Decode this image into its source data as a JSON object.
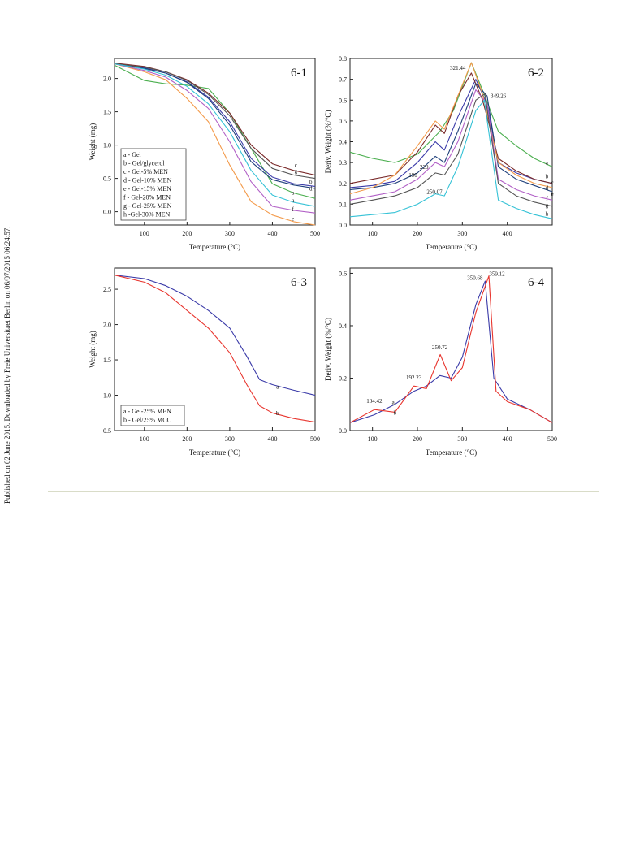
{
  "side_note": "Published on 02 June 2015. Downloaded by Freie Universitaet Berlin on 06/07/2015 06:24:57.",
  "chart_data": [
    {
      "id": "6-1",
      "type": "line",
      "panel_label": "6-1",
      "xlabel": "Temperature (°C)",
      "ylabel": "Weight (mg)",
      "xlim": [
        30,
        500
      ],
      "ylim": [
        -0.2,
        2.3
      ],
      "xticks": [
        100,
        200,
        300,
        400,
        500
      ],
      "yticks": [
        0.0,
        0.5,
        1.0,
        1.5,
        2.0
      ],
      "legend": {
        "placement": "bottom-left",
        "entries": [
          "a - Gel",
          "b - Gel/glycerol",
          "c - Gel-5% MEN",
          "d - Gel-10% MEN",
          "e - Gel-15% MEN",
          "f - Gel-20% MEN",
          "g - Gel-25% MEN",
          "h -Gel-30% MEN"
        ]
      },
      "series": [
        {
          "name": "a",
          "color": "#4caf50",
          "x": [
            30,
            100,
            150,
            200,
            250,
            300,
            350,
            400,
            450,
            500
          ],
          "y": [
            2.2,
            1.97,
            1.92,
            1.9,
            1.85,
            1.48,
            0.95,
            0.42,
            0.28,
            0.2
          ]
        },
        {
          "name": "b",
          "color": "#3a3aa8",
          "x": [
            30,
            100,
            150,
            200,
            250,
            300,
            350,
            400,
            450,
            500
          ],
          "y": [
            2.22,
            2.16,
            2.08,
            1.95,
            1.72,
            1.35,
            0.8,
            0.52,
            0.42,
            0.38
          ]
        },
        {
          "name": "c",
          "color": "#7a2a2a",
          "x": [
            30,
            100,
            150,
            200,
            250,
            300,
            350,
            400,
            450,
            500
          ],
          "y": [
            2.23,
            2.18,
            2.1,
            1.98,
            1.78,
            1.48,
            1.0,
            0.72,
            0.62,
            0.55
          ]
        },
        {
          "name": "d",
          "color": "#1e3f7a",
          "x": [
            30,
            100,
            150,
            200,
            250,
            300,
            350,
            400,
            450,
            500
          ],
          "y": [
            2.22,
            2.15,
            2.08,
            1.94,
            1.7,
            1.3,
            0.75,
            0.48,
            0.4,
            0.35
          ]
        },
        {
          "name": "e",
          "color": "#f39a4a",
          "x": [
            30,
            100,
            150,
            200,
            250,
            300,
            350,
            400,
            450,
            500
          ],
          "y": [
            2.22,
            2.1,
            1.98,
            1.7,
            1.35,
            0.7,
            0.15,
            -0.05,
            -0.15,
            -0.2
          ]
        },
        {
          "name": "f",
          "color": "#b15fc6",
          "x": [
            30,
            100,
            150,
            200,
            250,
            300,
            350,
            400,
            450,
            500
          ],
          "y": [
            2.22,
            2.12,
            2.02,
            1.82,
            1.55,
            1.05,
            0.45,
            0.08,
            0.02,
            -0.02
          ]
        },
        {
          "name": "g",
          "color": "#555555",
          "x": [
            30,
            100,
            150,
            200,
            250,
            300,
            350,
            400,
            450,
            500
          ],
          "y": [
            2.22,
            2.17,
            2.1,
            1.97,
            1.76,
            1.44,
            0.95,
            0.65,
            0.55,
            0.5
          ]
        },
        {
          "name": "h",
          "color": "#35c2d6",
          "x": [
            30,
            100,
            150,
            200,
            250,
            300,
            350,
            400,
            450,
            500
          ],
          "y": [
            2.22,
            2.14,
            2.05,
            1.88,
            1.62,
            1.2,
            0.62,
            0.25,
            0.14,
            0.08
          ]
        }
      ],
      "annotations": [
        {
          "text": "c",
          "x": 455,
          "y": 0.67
        },
        {
          "text": "g",
          "x": 455,
          "y": 0.58
        },
        {
          "text": "b",
          "x": 490,
          "y": 0.42
        },
        {
          "text": "d",
          "x": 490,
          "y": 0.32
        },
        {
          "text": "a",
          "x": 448,
          "y": 0.26
        },
        {
          "text": "h",
          "x": 448,
          "y": 0.14
        },
        {
          "text": "f",
          "x": 448,
          "y": 0.01
        },
        {
          "text": "e",
          "x": 448,
          "y": -0.13
        }
      ]
    },
    {
      "id": "6-2",
      "type": "line",
      "panel_label": "6-2",
      "xlabel": "Temperature (°C)",
      "ylabel": "Deriv. Weight (%/°C)",
      "xlim": [
        50,
        500
      ],
      "ylim": [
        0.0,
        0.8
      ],
      "xticks": [
        100,
        200,
        300,
        400
      ],
      "yticks": [
        0.0,
        0.1,
        0.2,
        0.3,
        0.4,
        0.5,
        0.6,
        0.7,
        0.8
      ],
      "series": [
        {
          "name": "a",
          "color": "#4caf50",
          "x": [
            50,
            100,
            150,
            200,
            250,
            280,
            320,
            350,
            380,
            420,
            460,
            500
          ],
          "y": [
            0.35,
            0.32,
            0.3,
            0.34,
            0.45,
            0.55,
            0.78,
            0.62,
            0.45,
            0.38,
            0.32,
            0.28
          ]
        },
        {
          "name": "b",
          "color": "#3a3aa8",
          "x": [
            50,
            100,
            150,
            200,
            240,
            260,
            290,
            330,
            355,
            380,
            420,
            460,
            500
          ],
          "y": [
            0.18,
            0.19,
            0.21,
            0.3,
            0.4,
            0.36,
            0.52,
            0.7,
            0.58,
            0.3,
            0.25,
            0.22,
            0.2
          ]
        },
        {
          "name": "c",
          "color": "#7a2a2a",
          "x": [
            50,
            100,
            150,
            200,
            240,
            260,
            290,
            320,
            345,
            380,
            420,
            460,
            500
          ],
          "y": [
            0.2,
            0.22,
            0.24,
            0.35,
            0.48,
            0.44,
            0.62,
            0.73,
            0.6,
            0.32,
            0.26,
            0.22,
            0.2
          ]
        },
        {
          "name": "d",
          "color": "#1e3f7a",
          "x": [
            50,
            100,
            150,
            200,
            240,
            260,
            290,
            330,
            355,
            380,
            420,
            460,
            500
          ],
          "y": [
            0.17,
            0.18,
            0.2,
            0.25,
            0.33,
            0.3,
            0.45,
            0.68,
            0.62,
            0.28,
            0.22,
            0.19,
            0.16
          ]
        },
        {
          "name": "e",
          "color": "#f39a4a",
          "x": [
            50,
            100,
            150,
            200,
            240,
            260,
            290,
            320,
            345,
            380,
            420,
            460,
            500
          ],
          "y": [
            0.15,
            0.18,
            0.24,
            0.38,
            0.5,
            0.46,
            0.62,
            0.78,
            0.63,
            0.3,
            0.24,
            0.2,
            0.18
          ]
        },
        {
          "name": "f",
          "color": "#b15fc6",
          "x": [
            50,
            100,
            150,
            200,
            240,
            260,
            290,
            330,
            355,
            380,
            420,
            460,
            500
          ],
          "y": [
            0.12,
            0.14,
            0.16,
            0.22,
            0.3,
            0.28,
            0.4,
            0.65,
            0.58,
            0.22,
            0.17,
            0.14,
            0.12
          ]
        },
        {
          "name": "g",
          "color": "#555555",
          "x": [
            50,
            100,
            150,
            200,
            240,
            260,
            290,
            330,
            350,
            380,
            420,
            460,
            500
          ],
          "y": [
            0.1,
            0.12,
            0.14,
            0.18,
            0.25,
            0.24,
            0.34,
            0.6,
            0.63,
            0.2,
            0.14,
            0.11,
            0.09
          ]
        },
        {
          "name": "h",
          "color": "#35c2d6",
          "x": [
            50,
            100,
            150,
            200,
            240,
            260,
            290,
            330,
            349,
            380,
            420,
            460,
            500
          ],
          "y": [
            0.04,
            0.05,
            0.06,
            0.1,
            0.15,
            0.14,
            0.28,
            0.55,
            0.6,
            0.12,
            0.08,
            0.05,
            0.03
          ]
        }
      ],
      "annotations": [
        {
          "text": "321.44",
          "x": 290,
          "y": 0.745
        },
        {
          "text": "349.26",
          "x": 380,
          "y": 0.61
        },
        {
          "text": "220",
          "x": 215,
          "y": 0.27
        },
        {
          "text": "190",
          "x": 190,
          "y": 0.23
        },
        {
          "text": "250.07",
          "x": 238,
          "y": 0.15
        },
        {
          "text": "a",
          "x": 488,
          "y": 0.29
        },
        {
          "text": "b",
          "x": 488,
          "y": 0.225
        },
        {
          "text": "c",
          "x": 500,
          "y": 0.195
        },
        {
          "text": "d",
          "x": 488,
          "y": 0.17
        },
        {
          "text": "e",
          "x": 500,
          "y": 0.14
        },
        {
          "text": "f",
          "x": 488,
          "y": 0.12
        },
        {
          "text": "g",
          "x": 488,
          "y": 0.085
        },
        {
          "text": "h",
          "x": 488,
          "y": 0.045
        }
      ]
    },
    {
      "id": "6-3",
      "type": "line",
      "panel_label": "6-3",
      "xlabel": "Temperature (°C)",
      "ylabel": "Weight (mg)",
      "xlim": [
        30,
        500
      ],
      "ylim": [
        0.5,
        2.8
      ],
      "xticks": [
        100,
        200,
        300,
        400,
        500
      ],
      "yticks": [
        0.5,
        1.0,
        1.5,
        2.0,
        2.5
      ],
      "legend": {
        "placement": "bottom-left",
        "entries": [
          "a - Gel-25% MEN",
          "b - Gel/25% MCC"
        ]
      },
      "series": [
        {
          "name": "a",
          "color": "#3a3aa8",
          "x": [
            30,
            100,
            150,
            200,
            250,
            300,
            340,
            370,
            400,
            450,
            500
          ],
          "y": [
            2.7,
            2.65,
            2.55,
            2.4,
            2.2,
            1.95,
            1.55,
            1.22,
            1.15,
            1.07,
            1.0
          ]
        },
        {
          "name": "b",
          "color": "#e8352e",
          "x": [
            30,
            100,
            150,
            200,
            250,
            300,
            340,
            370,
            400,
            450,
            500
          ],
          "y": [
            2.7,
            2.6,
            2.45,
            2.2,
            1.95,
            1.6,
            1.15,
            0.85,
            0.75,
            0.67,
            0.62
          ]
        }
      ],
      "annotations": [
        {
          "text": "a",
          "x": 412,
          "y": 1.09
        },
        {
          "text": "b",
          "x": 412,
          "y": 0.72
        }
      ]
    },
    {
      "id": "6-4",
      "type": "line",
      "panel_label": "6-4",
      "xlabel": "Temperature (°C)",
      "ylabel": "Deriv. Weight (%/°C)",
      "xlim": [
        50,
        500
      ],
      "ylim": [
        0.0,
        0.62
      ],
      "xticks": [
        100,
        200,
        300,
        400,
        500
      ],
      "yticks": [
        0.0,
        0.2,
        0.4,
        0.6
      ],
      "series": [
        {
          "name": "a",
          "color": "#3a3aa8",
          "x": [
            50,
            104,
            150,
            192,
            220,
            250,
            275,
            300,
            330,
            350.68,
            370,
            400,
            450,
            500
          ],
          "y": [
            0.03,
            0.06,
            0.1,
            0.15,
            0.17,
            0.21,
            0.2,
            0.28,
            0.48,
            0.57,
            0.2,
            0.12,
            0.08,
            0.03
          ]
        },
        {
          "name": "b",
          "color": "#e8352e",
          "x": [
            50,
            104.42,
            150,
            192.23,
            220,
            250.72,
            275,
            300,
            330,
            359.12,
            375,
            400,
            450,
            500
          ],
          "y": [
            0.03,
            0.08,
            0.07,
            0.17,
            0.16,
            0.29,
            0.19,
            0.24,
            0.45,
            0.59,
            0.15,
            0.11,
            0.08,
            0.03
          ]
        }
      ],
      "annotations": [
        {
          "text": "104.42",
          "x": 104,
          "y": 0.105
        },
        {
          "text": "192.23",
          "x": 192,
          "y": 0.195
        },
        {
          "text": "250.72",
          "x": 250,
          "y": 0.31
        },
        {
          "text": "350.68",
          "x": 328,
          "y": 0.575
        },
        {
          "text": "359.12",
          "x": 377,
          "y": 0.59
        },
        {
          "text": "a",
          "x": 146,
          "y": 0.1
        },
        {
          "text": "b",
          "x": 150,
          "y": 0.06
        }
      ]
    }
  ]
}
